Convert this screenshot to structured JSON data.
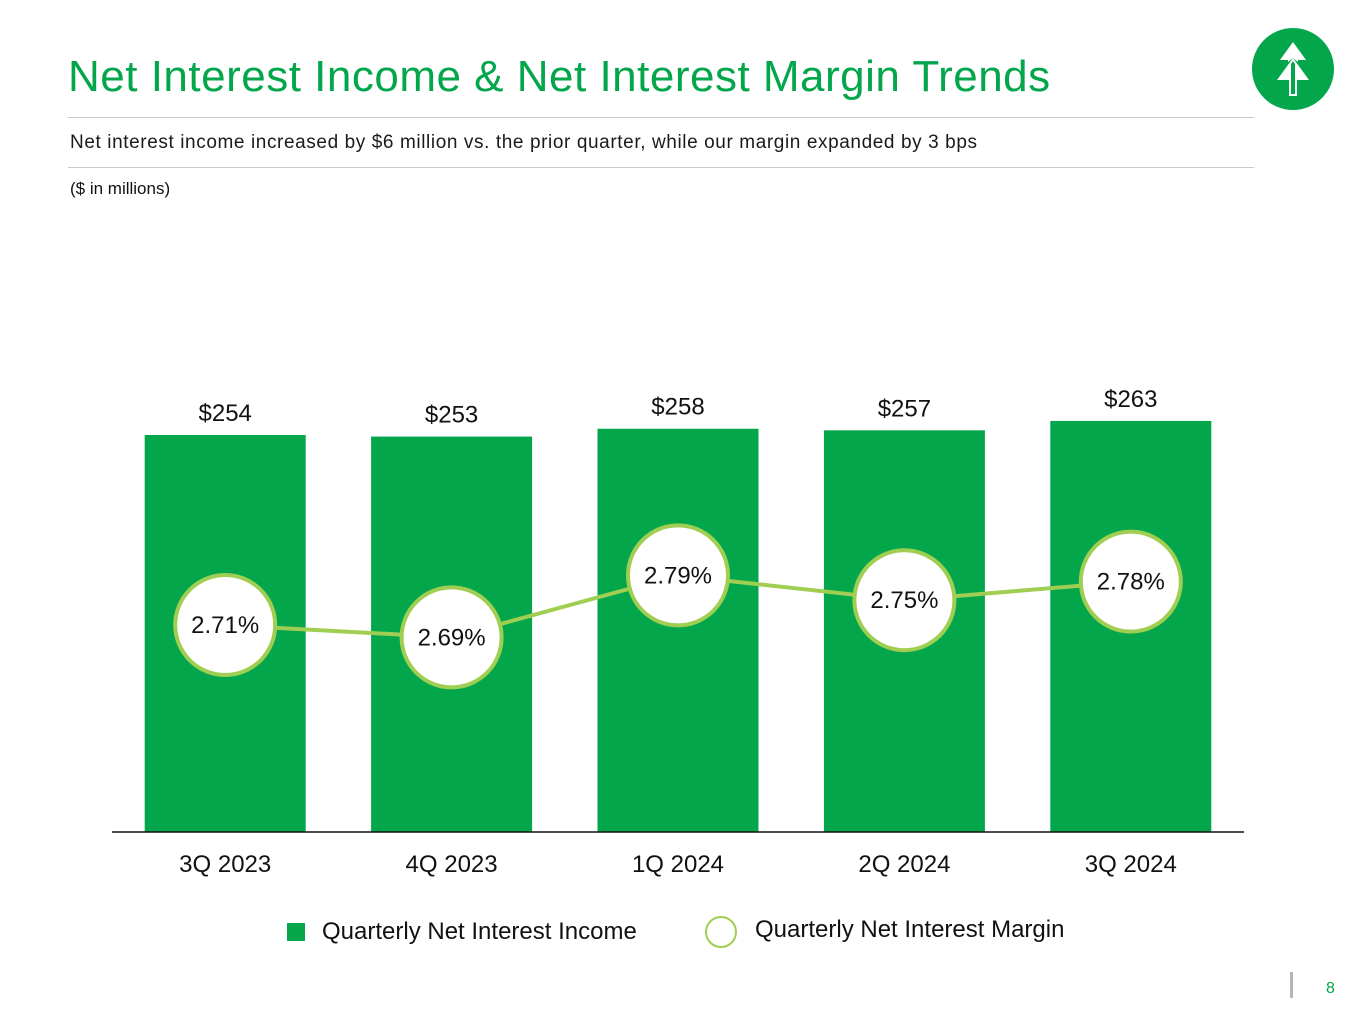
{
  "slide": {
    "title": "Net Interest Income & Net Interest Margin Trends",
    "subtitle": "Net interest income increased by $6 million vs. the prior quarter, while our margin expanded by 3 bps",
    "units_note": "($ in millions)",
    "page_number": "8",
    "logo_icon": "tree-logo-icon"
  },
  "colors": {
    "brand_green": "#03a64a",
    "nim_line": "#9fce52"
  },
  "chart_data": {
    "type": "bar",
    "categories": [
      "3Q 2023",
      "4Q 2023",
      "1Q 2024",
      "2Q 2024",
      "3Q 2024"
    ],
    "series": [
      {
        "name": "Quarterly Net Interest Income",
        "kind": "bar",
        "values": [
          254,
          253,
          258,
          257,
          263
        ],
        "labels": [
          "$254",
          "$253",
          "$258",
          "$257",
          "$263"
        ]
      },
      {
        "name": "Quarterly Net Interest Margin",
        "kind": "line",
        "values": [
          2.71,
          2.69,
          2.79,
          2.75,
          2.78
        ],
        "labels": [
          "2.71%",
          "2.69%",
          "2.79%",
          "2.75%",
          "2.78%"
        ]
      }
    ],
    "title": "",
    "xlabel": "",
    "ylabel": "",
    "ylim": [
      0,
      300
    ],
    "nim_range": [
      2.4,
      2.9
    ],
    "grid": false,
    "legend_position": "bottom"
  }
}
